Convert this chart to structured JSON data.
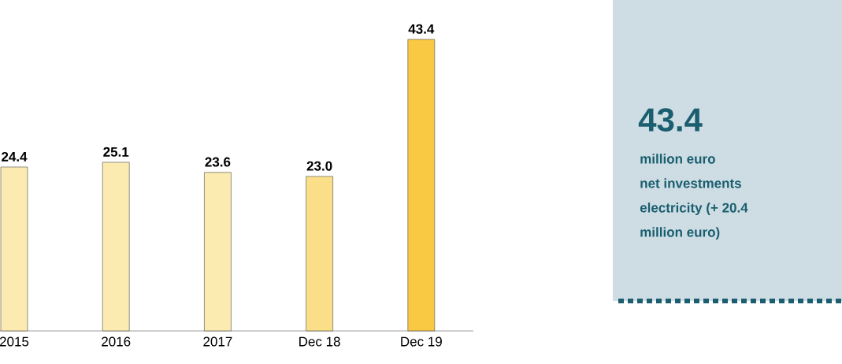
{
  "chart_data": {
    "type": "bar",
    "categories": [
      "2015",
      "2016",
      "2017",
      "Dec 18",
      "Dec 19"
    ],
    "values": [
      24.4,
      25.1,
      23.6,
      23.0,
      43.4
    ],
    "value_labels": [
      "24.4",
      "25.1",
      "23.6",
      "23.0",
      "43.4"
    ],
    "colors": [
      "#fbebb0",
      "#fbebb0",
      "#fbebb0",
      "#fbdf88",
      "#f9c943"
    ],
    "annotations": [
      "43.4",
      "million euro",
      "net investments",
      "electricity (+ 20.4",
      "million euro)"
    ]
  }
}
